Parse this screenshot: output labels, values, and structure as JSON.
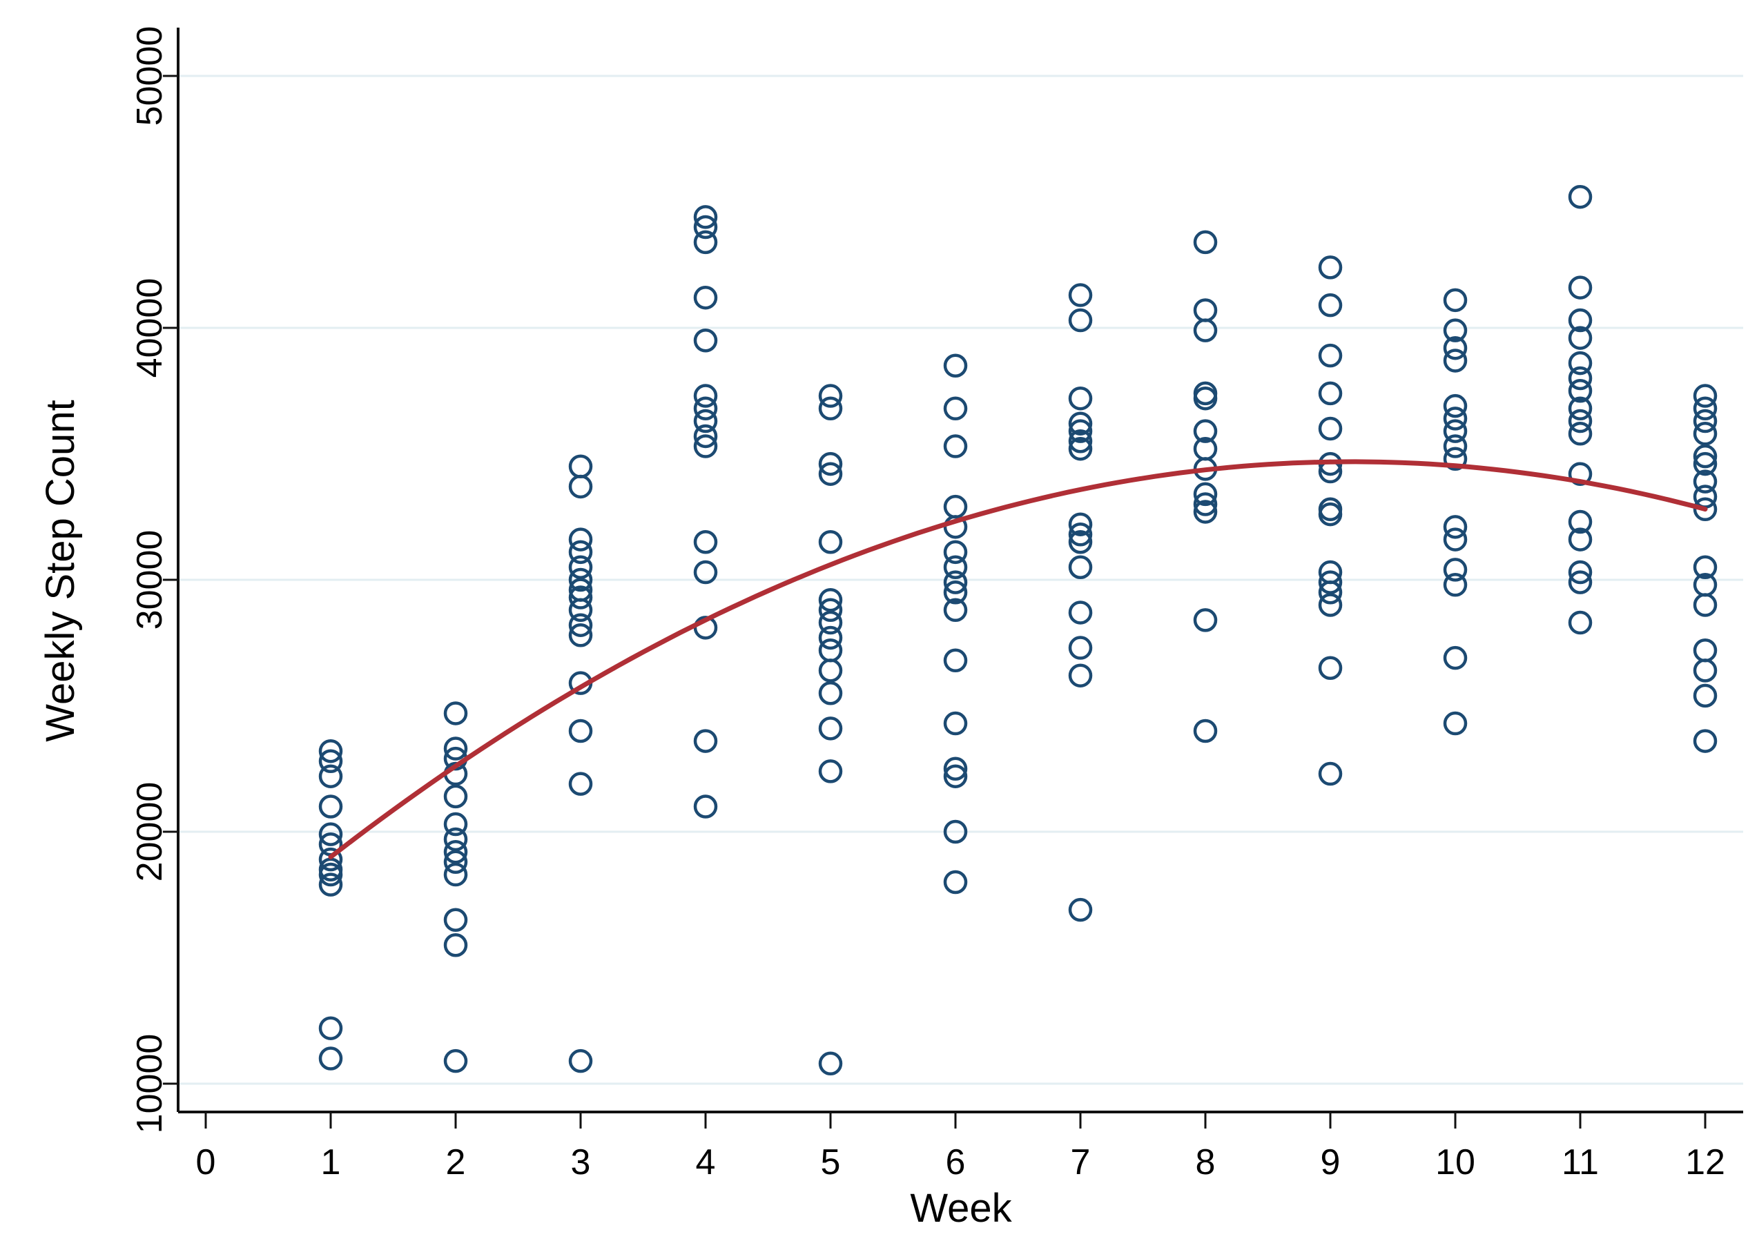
{
  "chart_data": {
    "type": "scatter",
    "title": "",
    "xlabel": "Week",
    "ylabel": "Weekly Step Count",
    "x_ticks": [
      0,
      1,
      2,
      3,
      4,
      5,
      6,
      7,
      8,
      9,
      10,
      11,
      12
    ],
    "y_ticks": [
      10000,
      20000,
      30000,
      40000,
      50000
    ],
    "x_range": [
      -0.22,
      12.3
    ],
    "y_range": [
      8900,
      51900
    ],
    "grid": "horizontal",
    "legend": "none",
    "marker": {
      "shape": "circle-open",
      "color": "#1c4a72"
    },
    "fit_line": {
      "type": "quadratic",
      "color": "#b02f36",
      "a": 14925,
      "b": 4310,
      "c": -235,
      "domain": [
        1,
        12
      ]
    },
    "points": [
      {
        "week": 1,
        "values": [
          23200,
          22800,
          22200,
          21000,
          19900,
          19500,
          18900,
          18500,
          18300,
          17900,
          12200,
          11000
        ]
      },
      {
        "week": 2,
        "values": [
          24700,
          23300,
          22900,
          22300,
          21400,
          20300,
          19700,
          19200,
          18800,
          18300,
          16500,
          15500,
          10900
        ]
      },
      {
        "week": 3,
        "values": [
          34500,
          33700,
          31600,
          31100,
          30500,
          30000,
          29600,
          29300,
          28800,
          28200,
          27800,
          25900,
          24000,
          21900,
          10900
        ]
      },
      {
        "week": 4,
        "values": [
          44400,
          44000,
          43400,
          41200,
          39500,
          37300,
          36800,
          36300,
          35700,
          35300,
          31500,
          30300,
          28100,
          23600,
          21000
        ]
      },
      {
        "week": 5,
        "values": [
          37300,
          36800,
          34600,
          34200,
          31500,
          29200,
          28800,
          28300,
          27700,
          27200,
          26400,
          25500,
          24100,
          22400,
          10800
        ]
      },
      {
        "week": 6,
        "values": [
          38500,
          36800,
          35300,
          32900,
          32100,
          31100,
          30500,
          29900,
          29500,
          28800,
          26800,
          24300,
          22500,
          22200,
          20000,
          18000
        ]
      },
      {
        "week": 7,
        "values": [
          41300,
          40300,
          37200,
          36200,
          35900,
          35500,
          35200,
          32200,
          31800,
          31500,
          30500,
          28700,
          27300,
          26200,
          16900
        ]
      },
      {
        "week": 8,
        "values": [
          43400,
          40700,
          39900,
          37400,
          37200,
          35900,
          35200,
          34400,
          33400,
          33000,
          32700,
          28400,
          24000
        ]
      },
      {
        "week": 9,
        "values": [
          42400,
          40900,
          38900,
          37400,
          36000,
          34600,
          34300,
          32800,
          32600,
          30300,
          29900,
          29500,
          29000,
          26500,
          22300
        ]
      },
      {
        "week": 10,
        "values": [
          41100,
          39900,
          39200,
          38700,
          36900,
          36400,
          35900,
          35300,
          34800,
          32100,
          31600,
          30400,
          29800,
          26900,
          24300
        ]
      },
      {
        "week": 11,
        "values": [
          45200,
          41600,
          40300,
          39600,
          38600,
          38000,
          37500,
          36800,
          36300,
          35800,
          34200,
          32300,
          31600,
          30300,
          29900,
          28300
        ]
      },
      {
        "week": 12,
        "values": [
          37300,
          36800,
          36300,
          35800,
          34900,
          34600,
          33900,
          33300,
          32800,
          30500,
          29800,
          29000,
          27200,
          26400,
          25400,
          23600
        ]
      }
    ],
    "colors": {
      "marker_stroke": "#1c4a72",
      "fit_line": "#b02f36",
      "gridline": "#e3eef2",
      "axis": "#111111",
      "text": "#000000",
      "background": "#ffffff"
    }
  }
}
